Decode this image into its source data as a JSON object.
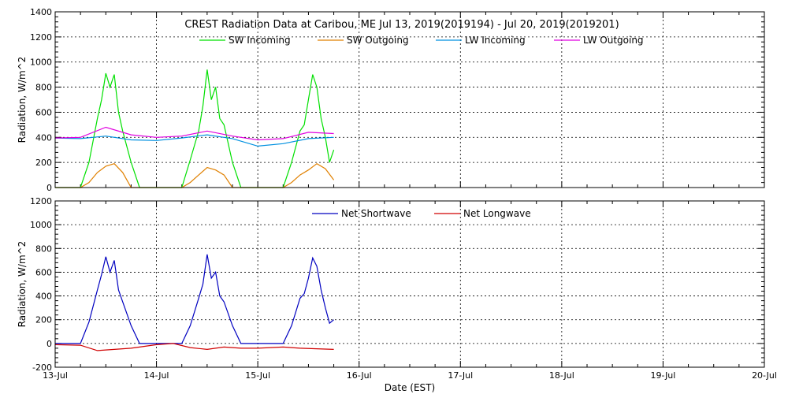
{
  "chart_data": [
    {
      "type": "line",
      "title": "CREST Radiation Data at Caribou, ME   Jul 13, 2019(2019194) - Jul 20, 2019(2019201)",
      "xlabel": "",
      "ylabel": "Radiation, W/m^2",
      "x_range": [
        "2019-07-13",
        "2019-07-20"
      ],
      "ylim": [
        0,
        1400
      ],
      "y_ticks": [
        0,
        200,
        400,
        600,
        800,
        1000,
        1200,
        1400
      ],
      "x_tick_labels": [],
      "grid": true,
      "legend": "top",
      "series": [
        {
          "name": "SW Incoming",
          "color": "#00e000",
          "x": [
            "2019-07-13 00:00",
            "2019-07-13 03:00",
            "2019-07-13 06:00",
            "2019-07-13 08:00",
            "2019-07-13 10:00",
            "2019-07-13 11:00",
            "2019-07-13 12:00",
            "2019-07-13 13:00",
            "2019-07-13 14:00",
            "2019-07-13 15:00",
            "2019-07-13 16:00",
            "2019-07-13 18:00",
            "2019-07-13 20:00",
            "2019-07-14 03:00",
            "2019-07-14 06:00",
            "2019-07-14 08:00",
            "2019-07-14 10:00",
            "2019-07-14 11:00",
            "2019-07-14 12:00",
            "2019-07-14 13:00",
            "2019-07-14 14:00",
            "2019-07-14 15:00",
            "2019-07-14 16:00",
            "2019-07-14 18:00",
            "2019-07-14 20:00",
            "2019-07-15 03:00",
            "2019-07-15 06:00",
            "2019-07-15 08:00",
            "2019-07-15 10:00",
            "2019-07-15 11:00",
            "2019-07-15 12:00",
            "2019-07-15 13:00",
            "2019-07-15 14:00",
            "2019-07-15 15:00",
            "2019-07-15 16:00",
            "2019-07-15 17:00",
            "2019-07-15 18:00"
          ],
          "y": [
            0,
            0,
            0,
            200,
            550,
            700,
            910,
            800,
            900,
            600,
            450,
            200,
            0,
            0,
            0,
            220,
            450,
            650,
            940,
            700,
            800,
            550,
            500,
            200,
            0,
            0,
            0,
            200,
            450,
            500,
            700,
            900,
            800,
            550,
            400,
            200,
            300
          ]
        },
        {
          "name": "SW Outgoing",
          "color": "#e08000",
          "x": [
            "2019-07-13 00:00",
            "2019-07-13 06:00",
            "2019-07-13 08:00",
            "2019-07-13 10:00",
            "2019-07-13 12:00",
            "2019-07-13 14:00",
            "2019-07-13 16:00",
            "2019-07-13 18:00",
            "2019-07-14 06:00",
            "2019-07-14 08:00",
            "2019-07-14 10:00",
            "2019-07-14 12:00",
            "2019-07-14 14:00",
            "2019-07-14 16:00",
            "2019-07-14 18:00",
            "2019-07-15 06:00",
            "2019-07-15 08:00",
            "2019-07-15 10:00",
            "2019-07-15 12:00",
            "2019-07-15 14:00",
            "2019-07-15 16:00",
            "2019-07-15 18:00"
          ],
          "y": [
            0,
            0,
            40,
            120,
            170,
            190,
            120,
            0,
            0,
            40,
            100,
            160,
            140,
            100,
            0,
            0,
            40,
            100,
            140,
            190,
            150,
            60
          ]
        },
        {
          "name": "LW Incoming",
          "color": "#0090e0",
          "x": [
            "2019-07-13 00:00",
            "2019-07-13 06:00",
            "2019-07-13 12:00",
            "2019-07-13 18:00",
            "2019-07-14 00:00",
            "2019-07-14 06:00",
            "2019-07-14 12:00",
            "2019-07-14 18:00",
            "2019-07-15 00:00",
            "2019-07-15 06:00",
            "2019-07-15 12:00",
            "2019-07-15 18:00"
          ],
          "y": [
            395,
            390,
            410,
            380,
            375,
            395,
            420,
            390,
            330,
            350,
            390,
            400
          ]
        },
        {
          "name": "LW Outgoing",
          "color": "#e000e0",
          "x": [
            "2019-07-13 00:00",
            "2019-07-13 06:00",
            "2019-07-13 12:00",
            "2019-07-13 18:00",
            "2019-07-14 00:00",
            "2019-07-14 06:00",
            "2019-07-14 12:00",
            "2019-07-14 18:00",
            "2019-07-15 00:00",
            "2019-07-15 06:00",
            "2019-07-15 12:00",
            "2019-07-15 18:00"
          ],
          "y": [
            395,
            400,
            480,
            420,
            400,
            410,
            450,
            410,
            380,
            390,
            440,
            430
          ]
        }
      ]
    },
    {
      "type": "line",
      "title": "",
      "xlabel": "Date (EST)",
      "ylabel": "Radiation, W/m^2",
      "x_range": [
        "2019-07-13",
        "2019-07-20"
      ],
      "ylim": [
        -200,
        1200
      ],
      "y_ticks": [
        -200,
        0,
        200,
        400,
        600,
        800,
        1000,
        1200
      ],
      "x_tick_labels": [
        "13-Jul",
        "14-Jul",
        "15-Jul",
        "16-Jul",
        "17-Jul",
        "18-Jul",
        "19-Jul",
        "20-Jul"
      ],
      "grid": true,
      "legend": "top",
      "series": [
        {
          "name": "Net Shortwave",
          "color": "#0000c0",
          "x": [
            "2019-07-13 00:00",
            "2019-07-13 06:00",
            "2019-07-13 08:00",
            "2019-07-13 10:00",
            "2019-07-13 11:00",
            "2019-07-13 12:00",
            "2019-07-13 13:00",
            "2019-07-13 14:00",
            "2019-07-13 15:00",
            "2019-07-13 16:00",
            "2019-07-13 18:00",
            "2019-07-13 20:00",
            "2019-07-14 06:00",
            "2019-07-14 08:00",
            "2019-07-14 10:00",
            "2019-07-14 11:00",
            "2019-07-14 12:00",
            "2019-07-14 13:00",
            "2019-07-14 14:00",
            "2019-07-14 15:00",
            "2019-07-14 16:00",
            "2019-07-14 18:00",
            "2019-07-14 20:00",
            "2019-07-15 06:00",
            "2019-07-15 08:00",
            "2019-07-15 10:00",
            "2019-07-15 11:00",
            "2019-07-15 12:00",
            "2019-07-15 13:00",
            "2019-07-15 14:00",
            "2019-07-15 15:00",
            "2019-07-15 16:00",
            "2019-07-15 17:00",
            "2019-07-15 18:00"
          ],
          "y": [
            0,
            0,
            180,
            450,
            580,
            730,
            600,
            700,
            450,
            350,
            150,
            0,
            0,
            150,
            380,
            500,
            750,
            550,
            600,
            400,
            350,
            150,
            0,
            0,
            150,
            380,
            420,
            550,
            720,
            650,
            450,
            300,
            170,
            200
          ]
        },
        {
          "name": "Net Longwave",
          "color": "#d00000",
          "x": [
            "2019-07-13 00:00",
            "2019-07-13 06:00",
            "2019-07-13 10:00",
            "2019-07-13 14:00",
            "2019-07-13 18:00",
            "2019-07-14 00:00",
            "2019-07-14 04:00",
            "2019-07-14 08:00",
            "2019-07-14 12:00",
            "2019-07-14 16:00",
            "2019-07-14 20:00",
            "2019-07-15 00:00",
            "2019-07-15 06:00",
            "2019-07-15 10:00",
            "2019-07-15 14:00",
            "2019-07-15 18:00"
          ],
          "y": [
            -10,
            -15,
            -60,
            -50,
            -40,
            -10,
            0,
            -35,
            -50,
            -30,
            -40,
            -40,
            -30,
            -40,
            -45,
            -50
          ]
        }
      ]
    }
  ]
}
